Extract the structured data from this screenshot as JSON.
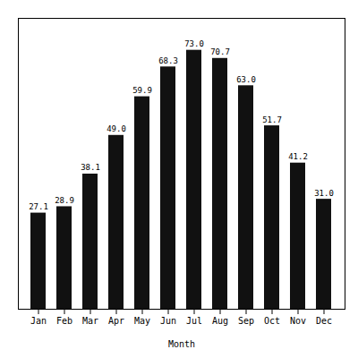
{
  "chart_data": {
    "type": "bar",
    "xlabel": "Month",
    "categories": [
      "Jan",
      "Feb",
      "Mar",
      "Apr",
      "May",
      "Jun",
      "Jul",
      "Aug",
      "Sep",
      "Oct",
      "Nov",
      "Dec"
    ],
    "values": [
      27.1,
      28.9,
      38.1,
      49.0,
      59.9,
      68.3,
      73.0,
      70.7,
      63.0,
      51.7,
      41.2,
      31.0
    ],
    "value_labels": [
      "27.1",
      "28.9",
      "38.1",
      "49.0",
      "59.9",
      "68.3",
      "73.0",
      "70.7",
      "63.0",
      "51.7",
      "41.2",
      "31.0"
    ],
    "color": "#111111",
    "ylim": [
      0,
      82
    ],
    "data_labels": true,
    "tick_labels": "x",
    "grid": false
  }
}
